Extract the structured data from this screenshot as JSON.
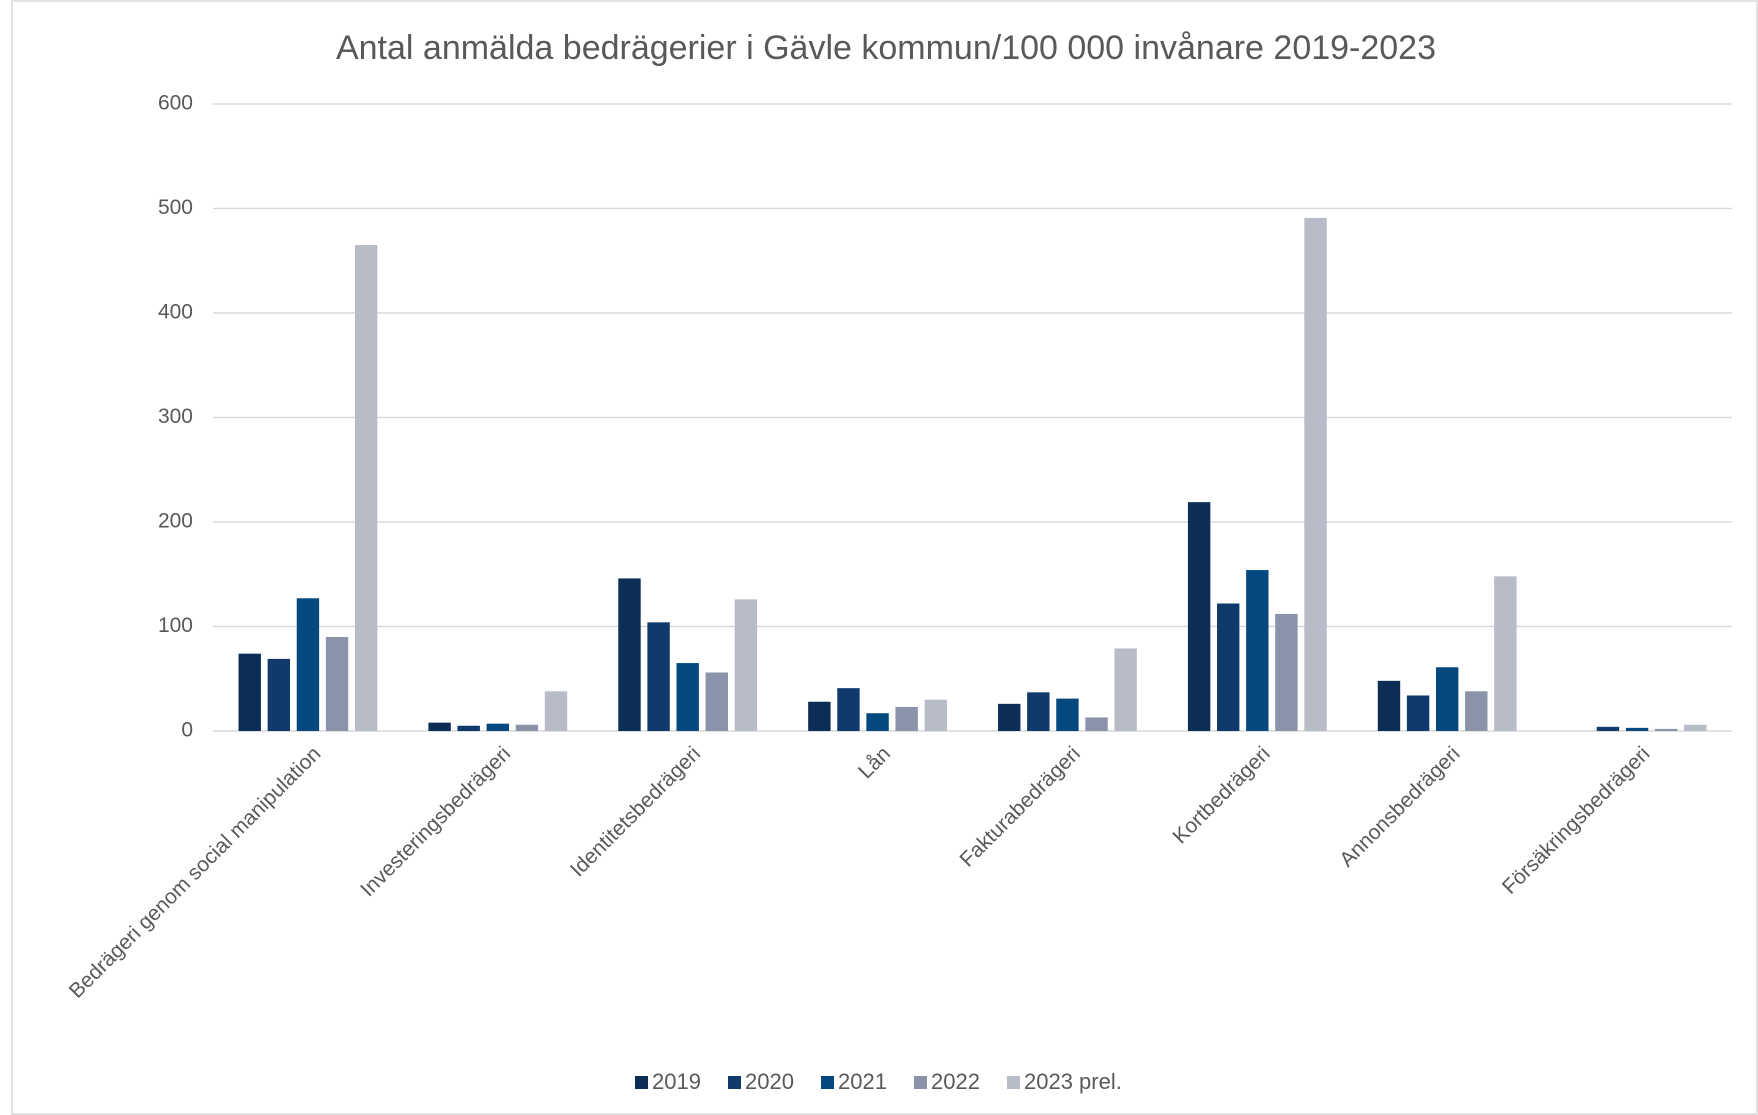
{
  "chart_data": {
    "type": "bar",
    "title": "Antal anmälda bedrägerier i Gävle kommun/100 000 invånare 2019-2023",
    "categories": [
      "Bedrägeri genom social manipulation",
      "Investeringsbedrägeri",
      "Identitetsbedrägeri",
      "Lån",
      "Fakturabedrägeri",
      "Kortbedrägeri",
      "Annonsbedrägeri",
      "Försäkringsbedrägeri"
    ],
    "series": [
      {
        "name": "2019",
        "color": "#0b2d56",
        "values": [
          74,
          8,
          146,
          28,
          26,
          219,
          48,
          0
        ]
      },
      {
        "name": "2020",
        "color": "#0f3a6b",
        "values": [
          69,
          5,
          104,
          41,
          37,
          122,
          34,
          4
        ]
      },
      {
        "name": "2021",
        "color": "#03497f",
        "values": [
          127,
          7,
          65,
          17,
          31,
          154,
          61,
          3
        ]
      },
      {
        "name": "2022",
        "color": "#8a93a9",
        "values": [
          90,
          6,
          56,
          23,
          13,
          112,
          38,
          2
        ]
      },
      {
        "name": "2023 prel.",
        "color": "#b8bcc9",
        "values": [
          465,
          38,
          126,
          30,
          79,
          491,
          148,
          6
        ]
      }
    ],
    "ylim": [
      0,
      600
    ],
    "yticks": [
      0,
      100,
      200,
      300,
      400,
      500,
      600
    ],
    "grid": true,
    "legend": "bottom"
  }
}
